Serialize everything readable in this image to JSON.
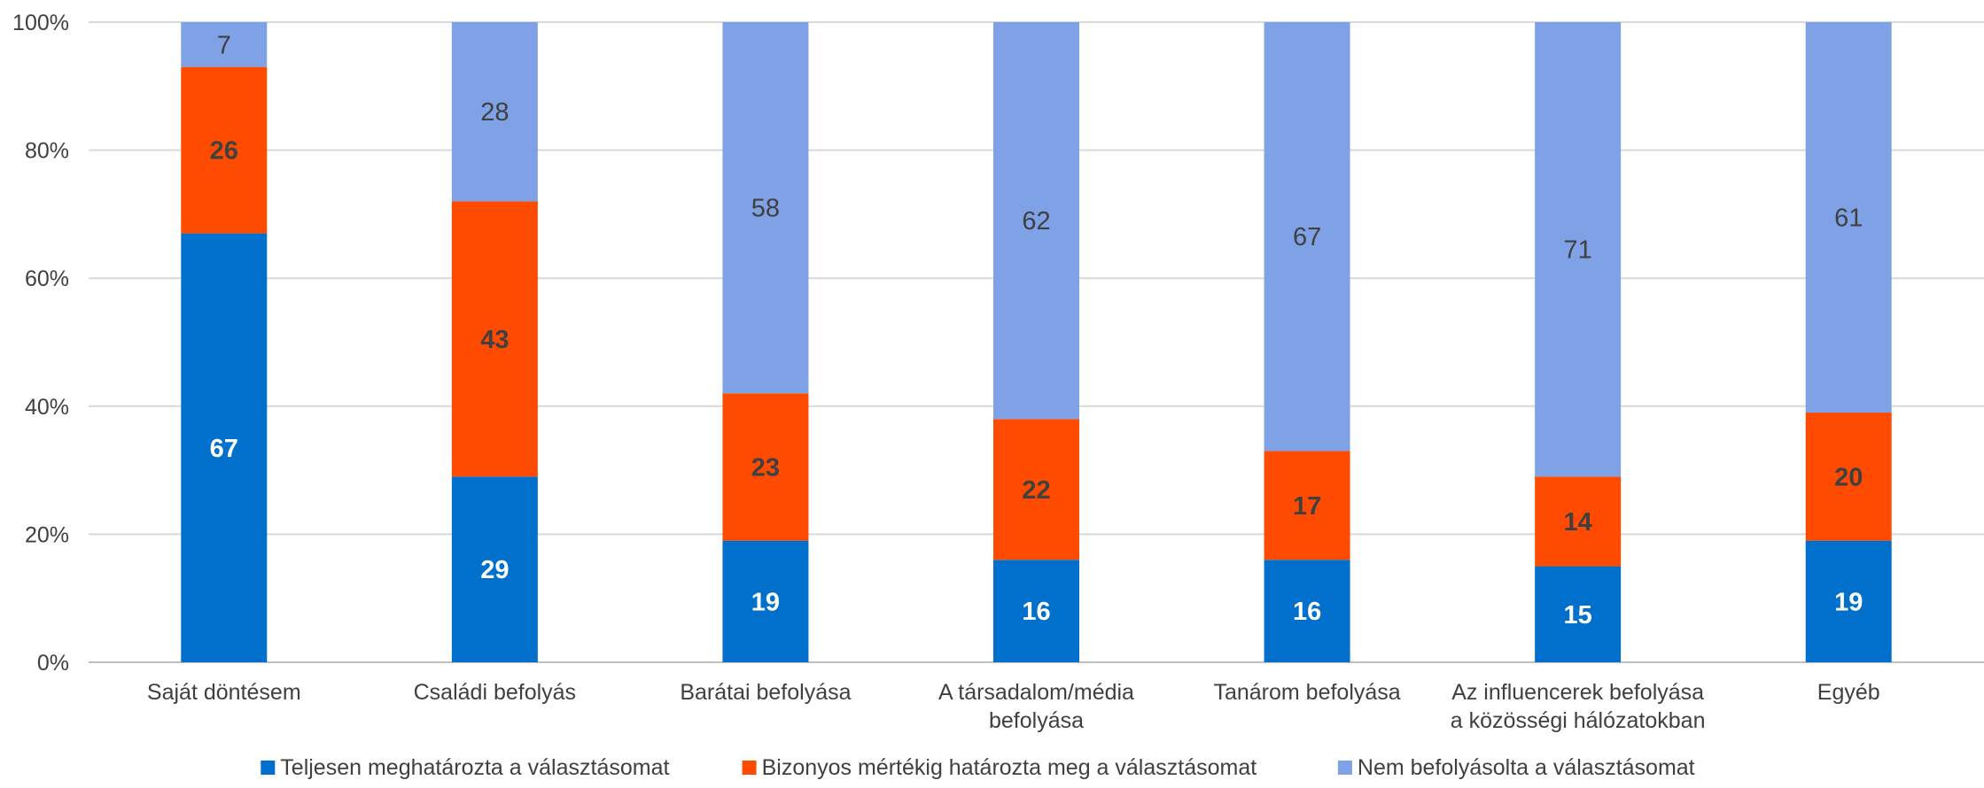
{
  "chart_data": {
    "type": "bar",
    "stacked": true,
    "percent": true,
    "categories": [
      [
        "Saját döntésem"
      ],
      [
        "Családi befolyás"
      ],
      [
        "Barátai befolyása"
      ],
      [
        "A társadalom/média",
        "befolyása"
      ],
      [
        "Tanárom befolyása"
      ],
      [
        "Az influencerek befolyása",
        "a közösségi hálózatokban"
      ],
      [
        "Egyéb"
      ]
    ],
    "series": [
      {
        "name": "Teljesen meghatározta a választásomat",
        "color": "#0070CC",
        "label_color": "#ffffff",
        "label_bold": true,
        "values": [
          67,
          29,
          19,
          16,
          16,
          15,
          19
        ]
      },
      {
        "name": "Bizonyos mértékig határozta meg a választásomat",
        "color": "#FF4B00",
        "label_color": "#404040",
        "label_bold": true,
        "values": [
          26,
          43,
          23,
          22,
          17,
          14,
          20
        ]
      },
      {
        "name": "Nem befolyásolta a választásomat",
        "color": "#7FA1E5",
        "label_color": "#404040",
        "label_bold": false,
        "values": [
          7,
          28,
          58,
          62,
          67,
          71,
          61
        ]
      }
    ],
    "yticks": [
      "0%",
      "20%",
      "40%",
      "60%",
      "80%",
      "100%"
    ],
    "ylim": [
      0,
      100
    ],
    "grid": true,
    "legend": "bottom",
    "title": "",
    "xlabel": "",
    "ylabel": ""
  }
}
